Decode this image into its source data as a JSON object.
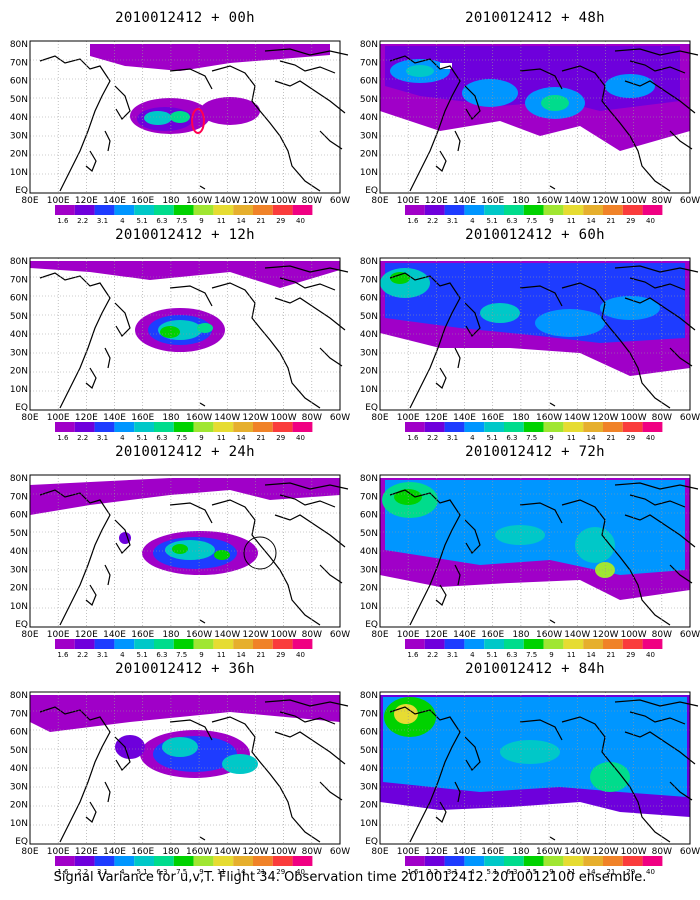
{
  "panels": [
    {
      "title": "2010012412 + 00h",
      "lead": "00h"
    },
    {
      "title": "2010012412 + 48h",
      "lead": "48h"
    },
    {
      "title": "2010012412 + 12h",
      "lead": "12h"
    },
    {
      "title": "2010012412 + 60h",
      "lead": "60h"
    },
    {
      "title": "2010012412 + 24h",
      "lead": "24h"
    },
    {
      "title": "2010012412 + 72h",
      "lead": "72h"
    },
    {
      "title": "2010012412 + 36h",
      "lead": "36h"
    },
    {
      "title": "2010012412 + 84h",
      "lead": "84h"
    }
  ],
  "lat_labels": [
    "80N",
    "70N",
    "60N",
    "50N",
    "40N",
    "30N",
    "20N",
    "10N",
    "EQ"
  ],
  "lon_labels": [
    "80E",
    "100E",
    "120E",
    "140E",
    "160E",
    "180",
    "160W",
    "140W",
    "120W",
    "100W",
    "80W",
    "60W"
  ],
  "colorbar": {
    "levels": [
      "1.6",
      "2.2",
      "3.1",
      "4",
      "5.1",
      "6.3",
      "7.5",
      "9",
      "11",
      "14",
      "21",
      "29",
      "40"
    ],
    "colors": [
      "#a000c8",
      "#6e00dc",
      "#1e3cff",
      "#0096ff",
      "#00c8c8",
      "#00dc8c",
      "#00d200",
      "#a0e632",
      "#e6dc32",
      "#e6af2d",
      "#f08228",
      "#fa3c3c",
      "#f00082"
    ]
  },
  "footer": "Signal Variance for u,v,T. Flight 34. Observation time 2010012412. 2010012100 ensemble.",
  "colors": {
    "background": "#ffffff",
    "grid": "#999999",
    "coast": "#000000"
  }
}
